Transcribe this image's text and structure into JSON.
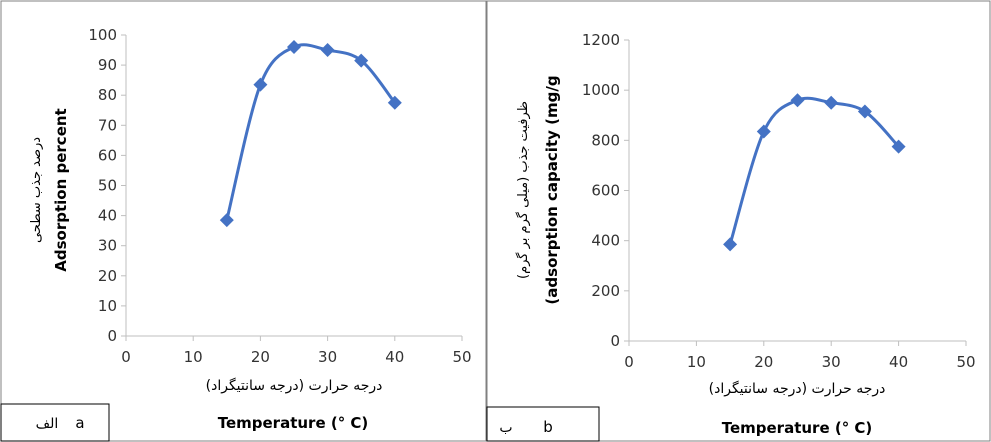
{
  "chart_data": [
    {
      "type": "line",
      "panel_label": "a",
      "panel_label_fa": "الف",
      "title": "",
      "xlabel": "Temperature (° C)",
      "xlabel_fa": "درجه حرارت (درجه سانتیگراد)",
      "ylabel": "Adsorption percent",
      "ylabel_fa": "درصد جذب سطحی",
      "xlim": [
        0,
        50
      ],
      "ylim": [
        0,
        100
      ],
      "x_ticks": [
        "0",
        "10",
        "20",
        "30",
        "40",
        "50"
      ],
      "y_ticks": [
        "0",
        "10",
        "20",
        "30",
        "40",
        "50",
        "60",
        "70",
        "80",
        "90",
        "100"
      ],
      "grid": false,
      "series": [
        {
          "x": [
            15,
            20,
            25,
            30,
            35,
            40
          ],
          "y": [
            38.5,
            83.5,
            96,
            95,
            91.5,
            77.5
          ]
        }
      ],
      "color": "#4472c4",
      "marker": "diamond"
    },
    {
      "type": "line",
      "panel_label": "b",
      "panel_label_fa": "ب",
      "title": "",
      "xlabel": "Temperature (° C)",
      "xlabel_fa": "درجه حرارت (درجه سانتیگراد)",
      "ylabel": "(adsorption capacity (mg/g",
      "ylabel_fa": "ظرفیت جذب (میلی گرم بر گرم)",
      "xlim": [
        0,
        50
      ],
      "ylim": [
        0,
        1200
      ],
      "x_ticks": [
        "0",
        "10",
        "20",
        "30",
        "40",
        "50"
      ],
      "y_ticks": [
        "0",
        "200",
        "400",
        "600",
        "800",
        "1000",
        "1200"
      ],
      "grid": false,
      "series": [
        {
          "x": [
            15,
            20,
            25,
            30,
            35,
            40
          ],
          "y": [
            385,
            835,
            960,
            950,
            915,
            775
          ]
        }
      ],
      "color": "#4472c4",
      "marker": "diamond"
    }
  ]
}
